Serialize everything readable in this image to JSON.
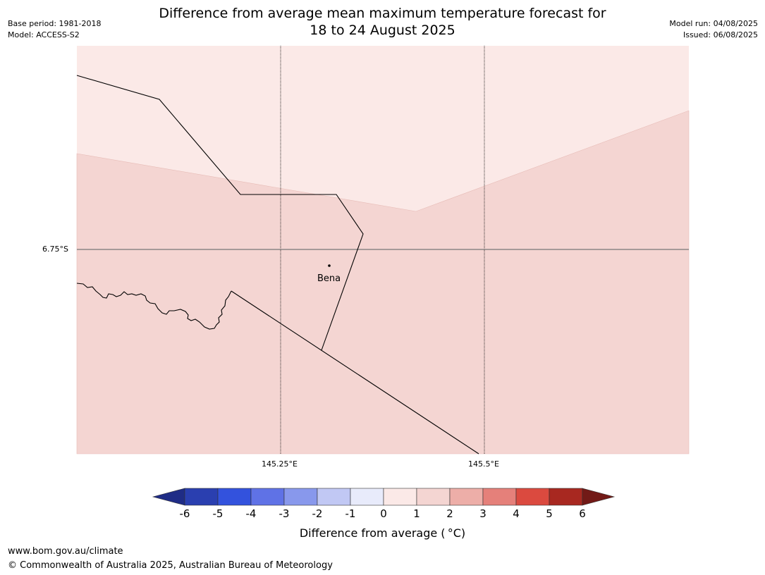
{
  "header": {
    "base_period": "Base period: 1981-2018",
    "model": "Model: ACCESS-S2",
    "title_line1": "Difference from average mean maximum temperature forecast for",
    "title_line2": "18 to 24 August 2025",
    "model_run": "Model run: 04/08/2025",
    "issued": "Issued: 06/08/2025"
  },
  "map": {
    "lat_label": "6.75°S",
    "lon_labels": [
      "145.25°E",
      "145.5°E"
    ],
    "place": "Bena",
    "colors": {
      "zero_to_one": "#fbe9e7",
      "one_to_two": "#f4d5d2",
      "border": "#000000"
    }
  },
  "colorbar": {
    "ticks": [
      "-6",
      "-5",
      "-4",
      "-3",
      "-2",
      "-1",
      "0",
      "1",
      "2",
      "3",
      "4",
      "5",
      "6"
    ],
    "colors": [
      "#1f2c86",
      "#2a3fb0",
      "#3352dd",
      "#5f72e6",
      "#8898ec",
      "#c1c8f4",
      "#e8ebfb",
      "#fbe9e7",
      "#f4d5d2",
      "#edaea8",
      "#e5807a",
      "#db4a3f",
      "#a82820",
      "#721a17"
    ],
    "label": "Difference from average ( °C)"
  },
  "footer": {
    "url": "www.bom.gov.au/climate",
    "copyright": "© Commonwealth of Australia 2025, Australian Bureau of Meteorology"
  }
}
